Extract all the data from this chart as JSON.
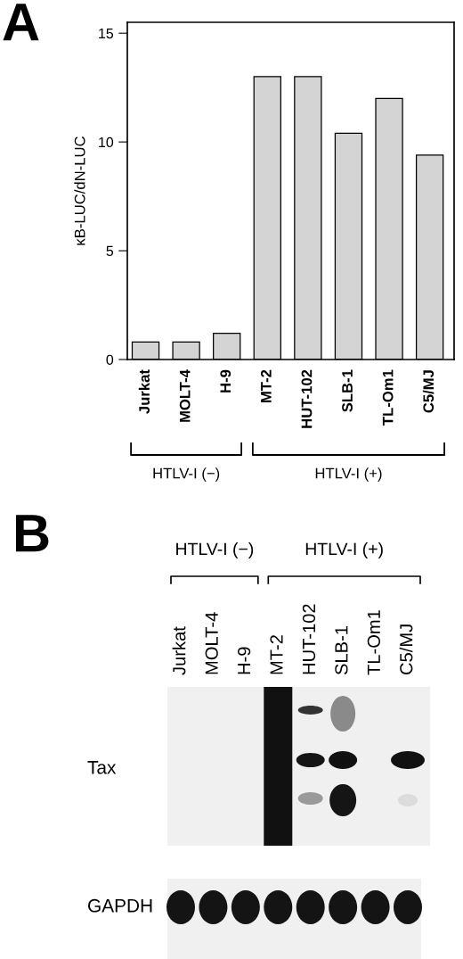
{
  "chart_data": [
    {
      "type": "bar",
      "title": "A",
      "ylabel": "κB-LUC/dN-LUC",
      "categories": [
        "Jurkat",
        "MOLT-4",
        "H-9",
        "MT-2",
        "HUT-102",
        "SLB-1",
        "TL-Om1",
        "C5/MJ"
      ],
      "values": [
        0.8,
        0.8,
        1.2,
        13.0,
        13.0,
        10.4,
        12.0,
        9.4
      ],
      "color": "#d4d4d4",
      "ylim": [
        0,
        15.5
      ],
      "yticks": [
        0,
        5,
        10,
        15
      ],
      "annotations": [
        "HTLV-I (−)",
        "HTLV-I (+)"
      ]
    },
    {
      "type": "other",
      "title": "B",
      "categories": [
        "Jurkat",
        "MOLT-4",
        "H-9",
        "MT-2",
        "HUT-102",
        "SLB-1",
        "TL-Om1",
        "C5/MJ"
      ],
      "y_categories": [
        "Tax",
        "GAPDH"
      ],
      "annotations": [
        "HTLV-I (−)",
        "HTLV-I (+)"
      ]
    }
  ]
}
